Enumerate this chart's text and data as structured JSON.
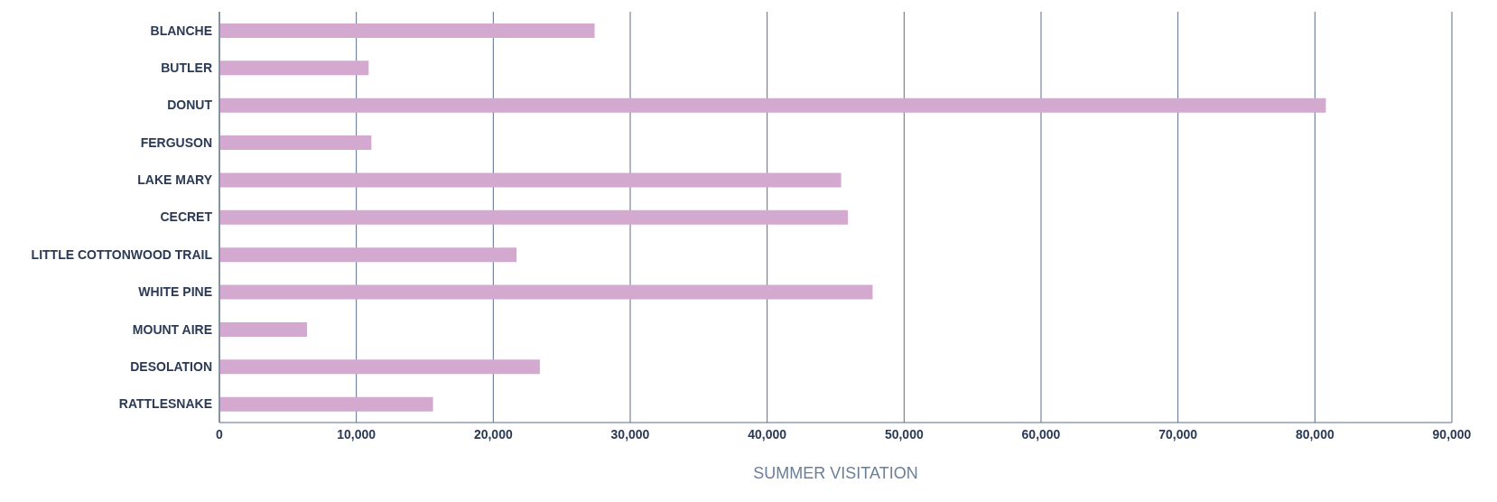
{
  "chart_data": {
    "type": "bar",
    "orientation": "horizontal",
    "xlabel": "SUMMER VISITATION",
    "categories": [
      "BLANCHE",
      "BUTLER",
      "DONUT",
      "FERGUSON",
      "LAKE MARY",
      "CECRET",
      "LITTLE COTTONWOOD TRAIL",
      "WHITE PINE",
      "MOUNT AIRE",
      "DESOLATION",
      "RATTLESNAKE"
    ],
    "values": [
      27400,
      10900,
      80800,
      11100,
      45400,
      45900,
      21700,
      47700,
      6400,
      23400,
      15600
    ],
    "color": "#d4a9d0",
    "xlim": [
      0,
      90000
    ],
    "xticks": [
      {
        "value": 0,
        "label": "0"
      },
      {
        "value": 10000,
        "label": "10,000"
      },
      {
        "value": 20000,
        "label": "20,000"
      },
      {
        "value": 30000,
        "label": "30,000"
      },
      {
        "value": 40000,
        "label": "40,000"
      },
      {
        "value": 50000,
        "label": "50,000"
      },
      {
        "value": 60000,
        "label": "60,000"
      },
      {
        "value": 70000,
        "label": "70,000"
      },
      {
        "value": 80000,
        "label": "80,000"
      },
      {
        "value": 90000,
        "label": "90,000"
      }
    ],
    "grid": "x",
    "legend": false
  }
}
